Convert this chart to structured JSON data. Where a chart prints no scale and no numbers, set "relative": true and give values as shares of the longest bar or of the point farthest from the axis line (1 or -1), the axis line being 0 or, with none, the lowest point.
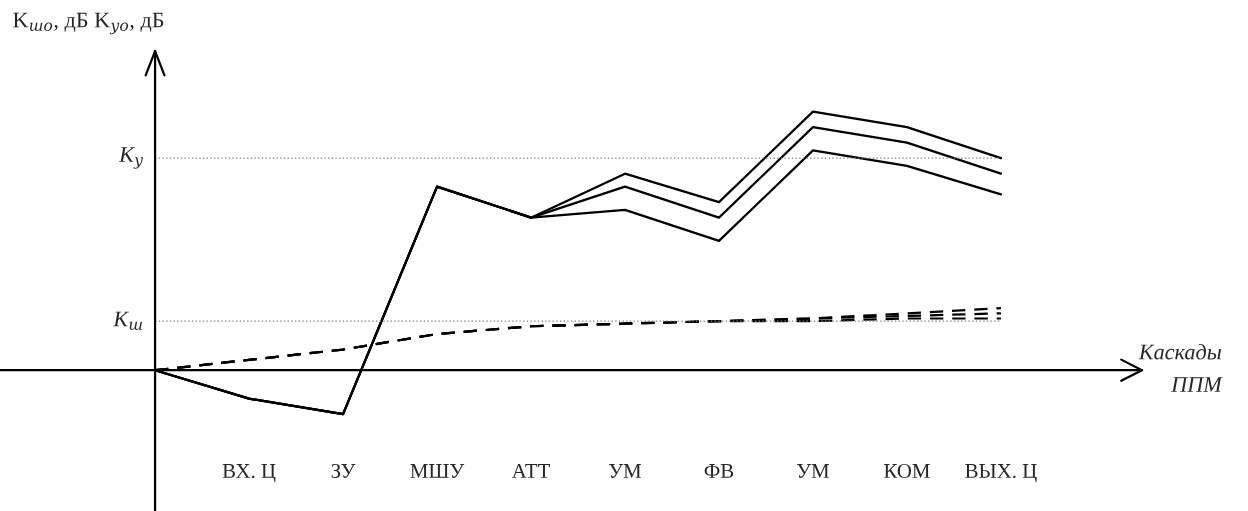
{
  "chart_data": {
    "type": "line",
    "relative": true,
    "ylabel": "K$_{шо}$, дБ K$_{уо}$, дБ",
    "xlabel": "Каскады\nППМ",
    "categories": [
      null,
      "ВХ. Ц",
      "ЗУ",
      "МШУ",
      "АТТ",
      "УМ",
      "ФВ",
      "УМ",
      "КОМ",
      "ВЫХ. Ц"
    ],
    "series": [
      {
        "color": "#000000",
        "line_style": "solid",
        "values": [
          0,
          -0.11,
          -0.17,
          0.71,
          0.59,
          0.76,
          0.65,
          1,
          0.94,
          0.82
        ]
      },
      {
        "color": "#000000",
        "line_style": "solid",
        "values": [
          0,
          -0.11,
          -0.17,
          0.71,
          0.59,
          0.71,
          0.59,
          0.94,
          0.88,
          0.76
        ]
      },
      {
        "color": "#000000",
        "line_style": "solid",
        "values": [
          0,
          -0.11,
          -0.17,
          0.71,
          0.59,
          0.62,
          0.5,
          0.85,
          0.79,
          0.68
        ]
      },
      {
        "color": "#000000",
        "line_style": "dashed",
        "values": [
          0,
          0.04,
          0.08,
          0.14,
          0.17,
          0.18,
          0.19,
          0.2,
          0.22,
          0.24
        ]
      },
      {
        "color": "#000000",
        "line_style": "dashed",
        "values": [
          0,
          0.04,
          0.08,
          0.14,
          0.17,
          0.18,
          0.19,
          0.2,
          0.21,
          0.22
        ]
      },
      {
        "color": "#000000",
        "line_style": "dashed",
        "values": [
          0,
          0.04,
          0.08,
          0.14,
          0.17,
          0.18,
          0.19,
          0.19,
          0.2,
          0.2
        ]
      }
    ],
    "ref_lines": [
      {
        "axis": "y",
        "value": 0.82,
        "label": "K$_{у}$",
        "color": "#808080",
        "line_style": "dotted"
      },
      {
        "axis": "y",
        "value": 0.19,
        "label": "K$_{ш}$",
        "color": "#808080",
        "line_style": "dotted"
      }
    ],
    "legend": false,
    "grid": false
  }
}
